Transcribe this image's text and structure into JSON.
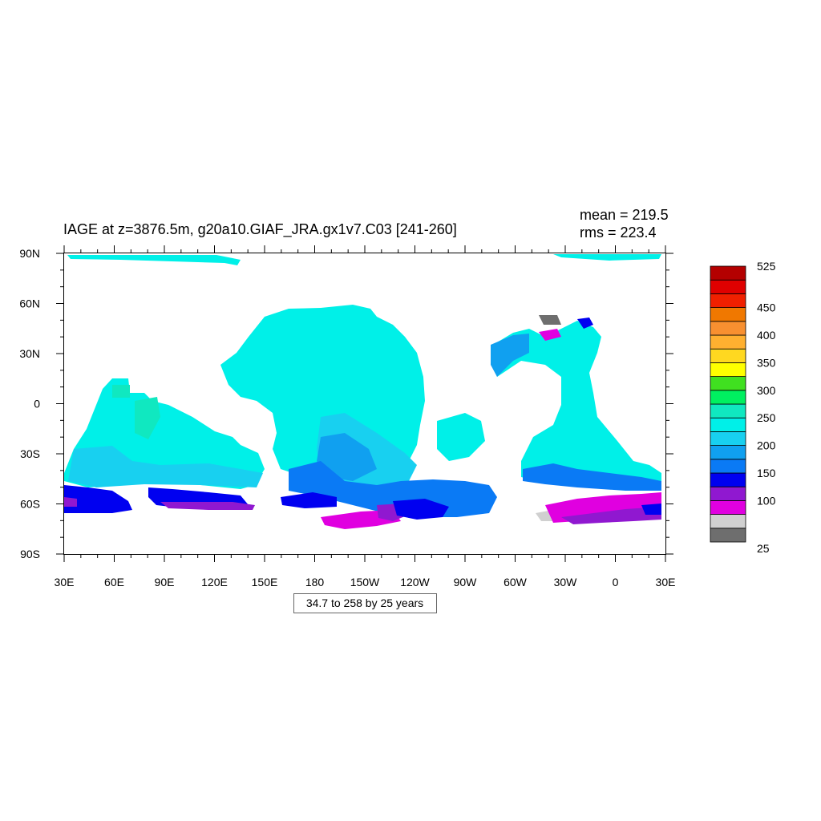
{
  "title": "IAGE at z=3876.5m, g20a10.GIAF_JRA.gx1v7.C03 [241-260]",
  "stats": {
    "mean": "mean = 219.5",
    "rms": "rms = 223.4"
  },
  "info_box": "34.7 to 258 by 25 years",
  "axes": {
    "y_ticks": [
      "90N",
      "60N",
      "30N",
      "0",
      "30S",
      "60S",
      "90S"
    ],
    "x_ticks": [
      "30E",
      "60E",
      "90E",
      "120E",
      "150E",
      "180",
      "150W",
      "120W",
      "90W",
      "60W",
      "30W",
      "0",
      "30E"
    ]
  },
  "colorbar": {
    "labels": [
      {
        "text": "525",
        "at": 525
      },
      {
        "text": "450",
        "at": 450
      },
      {
        "text": "400",
        "at": 400
      },
      {
        "text": "350",
        "at": 350
      },
      {
        "text": "300",
        "at": 300
      },
      {
        "text": "250",
        "at": 250
      },
      {
        "text": "200",
        "at": 200
      },
      {
        "text": "150",
        "at": 150
      },
      {
        "text": "100",
        "at": 100
      },
      {
        "text": "25",
        "at": 25
      }
    ],
    "colors": [
      "#6e6e6e",
      "#d0d0d0",
      "#e000e0",
      "#9018d0",
      "#0000f0",
      "#0a7af5",
      "#10a0f0",
      "#18d0f0",
      "#00f0e8",
      "#10e8c0",
      "#00f060",
      "#40e020",
      "#ffff00",
      "#ffd820",
      "#ffb030",
      "#f89030",
      "#f07800",
      "#f02000",
      "#e00000",
      "#b40000"
    ]
  },
  "chart_data": {
    "type": "heatmap",
    "title": "IAGE at z=3876.5m, g20a10.GIAF_JRA.gx1v7.C03 [241-260]",
    "variable": "IAGE",
    "units": "years",
    "depth": "z=3876.5m",
    "stats": {
      "mean": 219.5,
      "rms": 223.4
    },
    "contour_min": 34.7,
    "contour_max": 258,
    "contour_interval": 25,
    "x_range": [
      "30E",
      "30E"
    ],
    "y_range": [
      "90S",
      "90N"
    ]
  }
}
